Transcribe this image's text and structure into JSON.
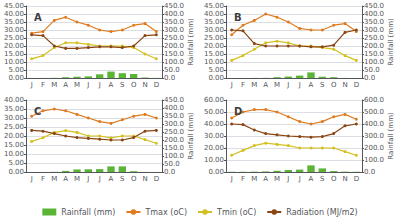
{
  "chart_data": [
    {
      "type": "bar",
      "title": "A",
      "categories": [
        "J",
        "F",
        "M",
        "A",
        "M",
        "J",
        "J",
        "A",
        "S",
        "O",
        "N",
        "D"
      ],
      "series": [
        {
          "name": "Rainfall (mm)",
          "type": "bar",
          "axis": "y2",
          "color": "#5ab534",
          "values": [
            0.5,
            0.5,
            1.0,
            5.0,
            8.0,
            10.0,
            23.0,
            40.0,
            30.0,
            25.0,
            3.0,
            0.5
          ]
        },
        {
          "name": "Tmax (oC)",
          "type": "line",
          "marker": "circle",
          "color": "#e07b20",
          "values": [
            28,
            29,
            36,
            38,
            35,
            33,
            30,
            29,
            30,
            33,
            34,
            29
          ]
        },
        {
          "name": "Tmin (oC)",
          "type": "line",
          "marker": "circle",
          "color": "#d4c020",
          "values": [
            12,
            14,
            19,
            22,
            22,
            21,
            20,
            20,
            20,
            19,
            15,
            12
          ]
        },
        {
          "name": "Radiation (MJ/m2)",
          "type": "line",
          "marker": "circle",
          "axis": "y2",
          "color": "#8b4513",
          "values": [
            270,
            265,
            200,
            185,
            185,
            190,
            195,
            195,
            190,
            200,
            265,
            270
          ]
        }
      ],
      "ylim": [
        0,
        45
      ],
      "yticks": [
        {
          "value": 0,
          "label": "0.00"
        },
        {
          "value": 5,
          "label": "5.00"
        },
        {
          "value": 10,
          "label": "10.00"
        },
        {
          "value": 15,
          "label": "15.00"
        },
        {
          "value": 20,
          "label": "20.00"
        },
        {
          "value": 25,
          "label": "25.00"
        },
        {
          "value": 30,
          "label": "30.00"
        },
        {
          "value": 35,
          "label": "35.00"
        },
        {
          "value": 40,
          "label": "40.00"
        },
        {
          "value": 45,
          "label": "45.00"
        }
      ],
      "y2label": "Rainfall (mm)",
      "y2lim": [
        0,
        450
      ],
      "y2ticks": [
        {
          "value": 0,
          "label": "0.0"
        },
        {
          "value": 50,
          "label": "50.0"
        },
        {
          "value": 100,
          "label": "100.0"
        },
        {
          "value": 150,
          "label": "150.0"
        },
        {
          "value": 200,
          "label": "200.0"
        },
        {
          "value": 250,
          "label": "250.0"
        },
        {
          "value": 300,
          "label": "300.0"
        },
        {
          "value": 350,
          "label": "350.0"
        },
        {
          "value": 400,
          "label": "400.0"
        },
        {
          "value": 450,
          "label": "450.0"
        }
      ],
      "grid": true,
      "legend": "bottom"
    },
    {
      "type": "bar",
      "title": "B",
      "categories": [
        "J",
        "F",
        "M",
        "A",
        "M",
        "J",
        "J",
        "A",
        "S",
        "O",
        "N",
        "D"
      ],
      "series": [
        {
          "name": "Rainfall (mm)",
          "type": "bar",
          "axis": "y2",
          "color": "#5ab534",
          "values": [
            0.2,
            0.2,
            0.5,
            1.0,
            5.0,
            9.0,
            15.0,
            35.0,
            8.0,
            5.0,
            0.5,
            0.2
          ]
        },
        {
          "name": "Tmax (oC)",
          "type": "line",
          "marker": "circle",
          "color": "#e07b20",
          "values": [
            27,
            33,
            36,
            40,
            38,
            35,
            31,
            30,
            30,
            33,
            34,
            29
          ]
        },
        {
          "name": "Tmin (oC)",
          "type": "line",
          "marker": "circle",
          "color": "#d4c020",
          "values": [
            11,
            14,
            18,
            22,
            23,
            22,
            20,
            20,
            19,
            18,
            14,
            11
          ]
        },
        {
          "name": "Radiation (MJ/m2)",
          "type": "line",
          "marker": "circle",
          "axis": "y2",
          "color": "#8b4513",
          "values": [
            300,
            295,
            215,
            200,
            200,
            200,
            200,
            195,
            195,
            205,
            285,
            300
          ]
        }
      ],
      "ylim": [
        0,
        45
      ],
      "yticks": [
        {
          "value": 0,
          "label": "0.00"
        },
        {
          "value": 5,
          "label": "5.00"
        },
        {
          "value": 10,
          "label": "10.00"
        },
        {
          "value": 15,
          "label": "15.00"
        },
        {
          "value": 20,
          "label": "20.00"
        },
        {
          "value": 25,
          "label": "25.00"
        },
        {
          "value": 30,
          "label": "30.00"
        },
        {
          "value": 35,
          "label": "35.00"
        },
        {
          "value": 40,
          "label": "40.00"
        },
        {
          "value": 45,
          "label": "45.00"
        }
      ],
      "y2label": "Rainfall (mm)",
      "y2lim": [
        0,
        450
      ],
      "y2ticks": [
        {
          "value": 0,
          "label": "0.0"
        },
        {
          "value": 50,
          "label": "50.0"
        },
        {
          "value": 100,
          "label": "100.0"
        },
        {
          "value": 150,
          "label": "150.0"
        },
        {
          "value": 200,
          "label": "200.0"
        },
        {
          "value": 250,
          "label": "250.0"
        },
        {
          "value": 300,
          "label": "300.0"
        },
        {
          "value": 350,
          "label": "350.0"
        },
        {
          "value": 400,
          "label": "400.0"
        },
        {
          "value": 450,
          "label": "450.0"
        }
      ],
      "grid": true,
      "legend": "bottom"
    },
    {
      "type": "bar",
      "title": "C",
      "categories": [
        "J",
        "F",
        "M",
        "A",
        "M",
        "J",
        "J",
        "A",
        "S",
        "O",
        "N",
        "D"
      ],
      "series": [
        {
          "name": "Rainfall (mm)",
          "type": "bar",
          "axis": "y2",
          "color": "#5ab534",
          "values": [
            0.2,
            0.2,
            1.0,
            7.0,
            16.0,
            17.0,
            18.0,
            35.0,
            35.0,
            5.0,
            0.5,
            0.2
          ]
        },
        {
          "name": "Tmax (oC)",
          "type": "line",
          "marker": "circle",
          "color": "#e07b20",
          "values": [
            31,
            34,
            35,
            34,
            32,
            30,
            28,
            27,
            29,
            31,
            32,
            30
          ]
        },
        {
          "name": "Tmin (oC)",
          "type": "line",
          "marker": "circle",
          "color": "#d4c020",
          "values": [
            17,
            19,
            22,
            23,
            22,
            20,
            20,
            19,
            20,
            20,
            18,
            16
          ]
        },
        {
          "name": "Radiation (MJ/m2)",
          "type": "line",
          "marker": "circle",
          "axis": "y2",
          "color": "#8b4513",
          "values": [
            260,
            255,
            240,
            225,
            215,
            210,
            205,
            200,
            200,
            215,
            255,
            260
          ]
        }
      ],
      "ylim": [
        0,
        40
      ],
      "yticks": [
        {
          "value": 0,
          "label": "0.00"
        },
        {
          "value": 5,
          "label": "5.00"
        },
        {
          "value": 10,
          "label": "10.00"
        },
        {
          "value": 15,
          "label": "15.00"
        },
        {
          "value": 20,
          "label": "20.00"
        },
        {
          "value": 25,
          "label": "25.00"
        },
        {
          "value": 30,
          "label": "30.00"
        },
        {
          "value": 35,
          "label": "35.00"
        },
        {
          "value": 40,
          "label": "40.00"
        }
      ],
      "y2label": "Rainfall (mm)",
      "y2lim": [
        0,
        450
      ],
      "y2ticks": [
        {
          "value": 0,
          "label": "0.0"
        },
        {
          "value": 50,
          "label": "50.0"
        },
        {
          "value": 100,
          "label": "100.0"
        },
        {
          "value": 150,
          "label": "150.0"
        },
        {
          "value": 200,
          "label": "200.0"
        },
        {
          "value": 250,
          "label": "250.0"
        },
        {
          "value": 300,
          "label": "300.0"
        },
        {
          "value": 350,
          "label": "350.0"
        },
        {
          "value": 400,
          "label": "400.0"
        },
        {
          "value": 450,
          "label": "450.0"
        }
      ],
      "grid": true,
      "legend": "bottom"
    },
    {
      "type": "bar",
      "title": "D",
      "categories": [
        "J",
        "F",
        "M",
        "A",
        "M",
        "J",
        "J",
        "A",
        "S",
        "O",
        "N",
        "D"
      ],
      "series": [
        {
          "name": "Rainfall (mm)",
          "type": "bar",
          "axis": "y2",
          "color": "#5ab534",
          "values": [
            2.0,
            2.0,
            3.0,
            5.0,
            10.0,
            17.0,
            20.0,
            55.0,
            30.0,
            8.0,
            3.0,
            2.0
          ]
        },
        {
          "name": "Tmax (oC)",
          "type": "line",
          "marker": "circle",
          "color": "#e07b20",
          "values": [
            45,
            50,
            52,
            52,
            50,
            46,
            42,
            40,
            42,
            46,
            48,
            44
          ]
        },
        {
          "name": "Tmin (oC)",
          "type": "line",
          "marker": "circle",
          "color": "#d4c020",
          "values": [
            14,
            18,
            22,
            24,
            23,
            22,
            20,
            20,
            20,
            20,
            17,
            14
          ]
        },
        {
          "name": "Radiation (MJ/m2)",
          "type": "line",
          "marker": "circle",
          "axis": "y2",
          "color": "#8b4513",
          "values": [
            400,
            395,
            350,
            320,
            310,
            300,
            295,
            290,
            295,
            320,
            385,
            400
          ]
        }
      ],
      "ylim": [
        0,
        60
      ],
      "yticks": [
        {
          "value": 0,
          "label": "0.00"
        },
        {
          "value": 10,
          "label": "10.00"
        },
        {
          "value": 20,
          "label": "20.00"
        },
        {
          "value": 30,
          "label": "30.00"
        },
        {
          "value": 40,
          "label": "40.00"
        },
        {
          "value": 50,
          "label": "50.00"
        },
        {
          "value": 60,
          "label": "60.00"
        }
      ],
      "y2label": "Rainfall (mm)",
      "y2lim": [
        0,
        600
      ],
      "y2ticks": [
        {
          "value": 0,
          "label": "0.0"
        },
        {
          "value": 100,
          "label": "100.0"
        },
        {
          "value": 200,
          "label": "200.0"
        },
        {
          "value": 300,
          "label": "300.0"
        },
        {
          "value": 400,
          "label": "400.0"
        },
        {
          "value": 500,
          "label": "500.0"
        },
        {
          "value": 600,
          "label": "600.0"
        }
      ],
      "grid": true,
      "legend": "bottom"
    }
  ]
}
